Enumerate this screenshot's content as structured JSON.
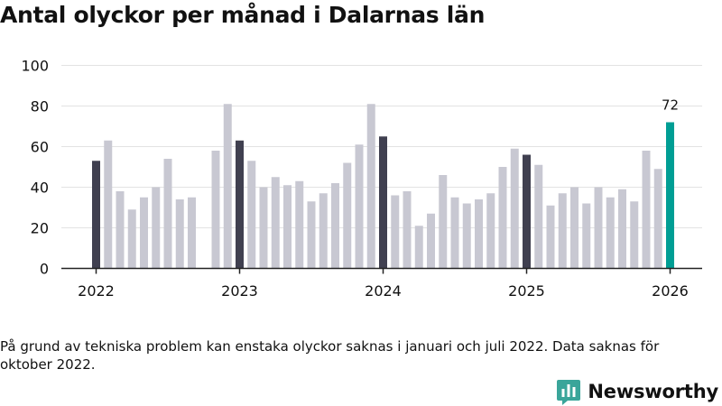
{
  "title": "Antal olyckor per månad i Dalarnas län",
  "footnote": "På grund av tekniska problem kan enstaka olyckor saknas i januari och juli 2022. Data saknas för oktober 2022.",
  "brand": {
    "name": "Newsworthy",
    "icon": "newsworthy-logo-icon"
  },
  "colors": {
    "highlight": "#009e94",
    "january": "#404050",
    "regular": "#c8c8d2",
    "grid": "#e3e3e3",
    "axis": "#222222",
    "text": "#111111"
  },
  "chart_data": {
    "type": "bar",
    "title": "Antal olyckor per månad i Dalarnas län",
    "xlabel": "",
    "ylabel": "",
    "ylim": [
      0,
      100
    ],
    "yticks": [
      0,
      20,
      40,
      60,
      80,
      100
    ],
    "x_tick_labels": [
      {
        "label": "2022",
        "index": 0
      },
      {
        "label": "2023",
        "index": 12
      },
      {
        "label": "2024",
        "index": 24
      },
      {
        "label": "2025",
        "index": 36
      },
      {
        "label": "2026",
        "index": 48
      }
    ],
    "highlight_label": "72",
    "categories": [
      "2022-01",
      "2022-02",
      "2022-03",
      "2022-04",
      "2022-05",
      "2022-06",
      "2022-07",
      "2022-08",
      "2022-09",
      "2022-10",
      "2022-11",
      "2022-12",
      "2023-01",
      "2023-02",
      "2023-03",
      "2023-04",
      "2023-05",
      "2023-06",
      "2023-07",
      "2023-08",
      "2023-09",
      "2023-10",
      "2023-11",
      "2023-12",
      "2024-01",
      "2024-02",
      "2024-03",
      "2024-04",
      "2024-05",
      "2024-06",
      "2024-07",
      "2024-08",
      "2024-09",
      "2024-10",
      "2024-11",
      "2024-12",
      "2025-01",
      "2025-02",
      "2025-03",
      "2025-04",
      "2025-05",
      "2025-06",
      "2025-07",
      "2025-08",
      "2025-09",
      "2025-10",
      "2025-11",
      "2025-12",
      "2026-01"
    ],
    "values": [
      53,
      63,
      38,
      29,
      35,
      40,
      54,
      34,
      35,
      null,
      58,
      81,
      63,
      53,
      40,
      45,
      41,
      43,
      33,
      37,
      42,
      52,
      61,
      81,
      65,
      36,
      38,
      21,
      27,
      46,
      35,
      32,
      34,
      37,
      50,
      59,
      56,
      51,
      31,
      37,
      40,
      32,
      40,
      35,
      39,
      33,
      58,
      49,
      72
    ]
  }
}
